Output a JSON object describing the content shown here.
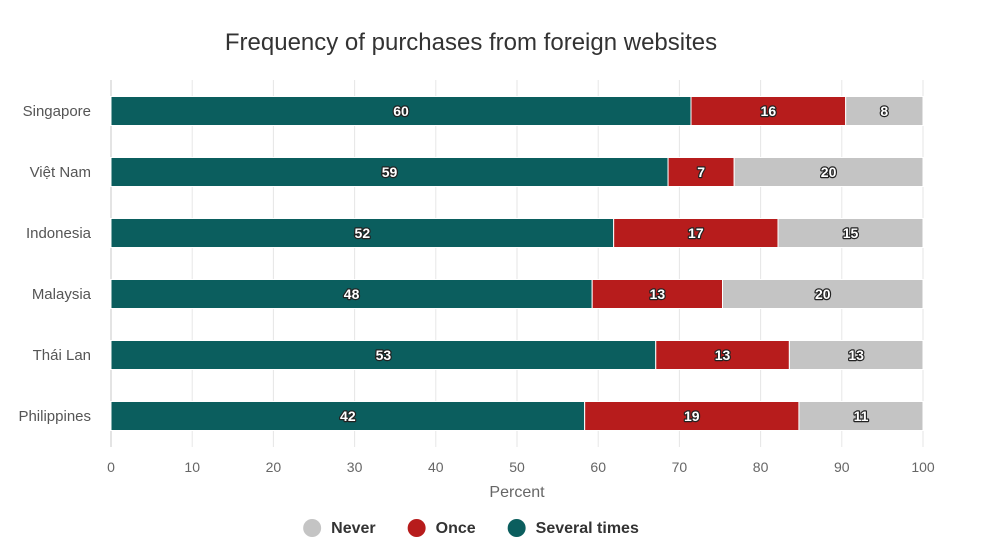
{
  "chart_data": {
    "type": "bar",
    "orientation": "horizontal",
    "stacking": "percent",
    "title": "Frequency of purchases from foreign websites",
    "xlabel": "Percent",
    "ylabel": "",
    "xlim": [
      0,
      100
    ],
    "x_ticks": [
      "0",
      "10",
      "20",
      "30",
      "40",
      "50",
      "60",
      "70",
      "80",
      "90",
      "100"
    ],
    "categories": [
      "Singapore",
      "Việt Nam",
      "Indonesia",
      "Malaysia",
      "Thái Lan",
      "Philippines"
    ],
    "series": [
      {
        "name": "Several times",
        "color": "#0b5e5e",
        "values": [
          60,
          59,
          52,
          48,
          53,
          42
        ]
      },
      {
        "name": "Once",
        "color": "#b71c1c",
        "values": [
          16,
          7,
          17,
          13,
          13,
          19
        ]
      },
      {
        "name": "Never",
        "color": "#c4c4c4",
        "values": [
          8,
          20,
          15,
          20,
          13,
          11
        ]
      }
    ],
    "legend": {
      "placement": "bottom-center",
      "items": [
        {
          "name": "Never",
          "color": "#c4c4c4"
        },
        {
          "name": "Once",
          "color": "#b71c1c"
        },
        {
          "name": "Several times",
          "color": "#0b5e5e"
        }
      ]
    },
    "grid": true
  }
}
